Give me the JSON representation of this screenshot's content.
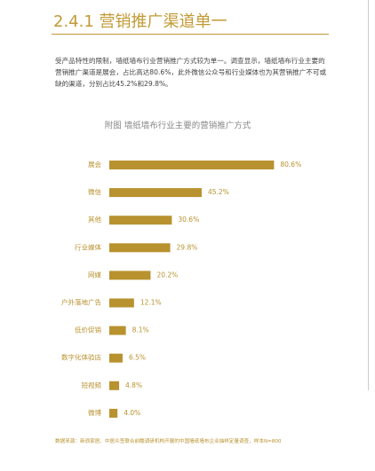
{
  "header": {
    "title": "2.4.1  营销推广渠道单一"
  },
  "body": {
    "paragraph": "受产品特性的限制，墙纸墙布行业营销推广方式较为单一。调查显示，墙纸墙布行业主要的营销推广渠道是展会，占比高达80.6%，此外微信公众号和行业媒体也为其营销推广不可或缺的渠道，分别占比45.2%和29.8%。"
  },
  "chart_data": {
    "type": "bar",
    "orientation": "horizontal",
    "title": "附图  墙纸墙布行业主要的营销推广方式",
    "categories": [
      "展会",
      "微信",
      "其他",
      "行业媒体",
      "网媒",
      "户外落地广告",
      "低价促销",
      "数字化体验店",
      "短视频",
      "微博"
    ],
    "values": [
      80.6,
      45.2,
      30.6,
      29.8,
      20.2,
      12.1,
      8.1,
      6.5,
      4.8,
      4.0
    ],
    "value_labels": [
      "80.6%",
      "45.2%",
      "30.6%",
      "29.8%",
      "20.2%",
      "12.1%",
      "8.1%",
      "6.5%",
      "4.8%",
      "4.0%"
    ],
    "color": "#b8922e"
  },
  "footer": {
    "source": "数据来源：新浪家居、中居众签联合前瞻调研机构开展的中国墙纸墙布企业抽样定量调查，样本N=800"
  }
}
